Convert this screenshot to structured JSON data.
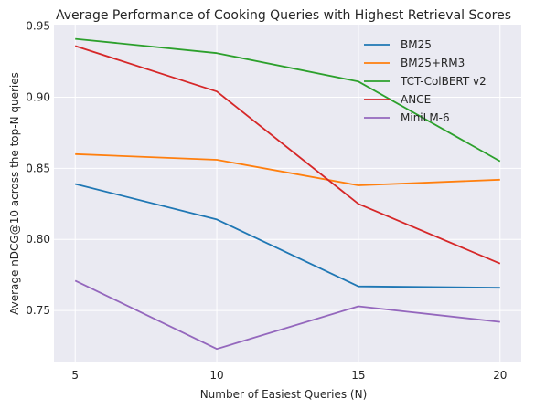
{
  "chart_data": {
    "type": "line",
    "title": "Average Performance of Cooking Queries with Highest Retrieval Scores",
    "xlabel": "Number of Easiest Queries (N)",
    "ylabel": "Average nDCG@10 across the top-N queries",
    "x": [
      5,
      10,
      15,
      20
    ],
    "xticks": [
      "5",
      "10",
      "15",
      "20"
    ],
    "yticks": [
      "0.75",
      "0.80",
      "0.85",
      "0.90",
      "0.95"
    ],
    "yticks_values": [
      0.75,
      0.8,
      0.85,
      0.9,
      0.95
    ],
    "xlim": [
      4.25,
      20.75
    ],
    "ylim": [
      0.7135,
      0.951
    ],
    "grid": true,
    "legend_position": "top-right",
    "series": [
      {
        "name": "BM25",
        "color": "#1f77b4",
        "values": [
          0.839,
          0.814,
          0.767,
          0.766
        ]
      },
      {
        "name": "BM25+RM3",
        "color": "#ff7f0e",
        "values": [
          0.86,
          0.856,
          0.838,
          0.842
        ]
      },
      {
        "name": "TCT-ColBERT v2",
        "color": "#2ca02c",
        "values": [
          0.941,
          0.931,
          0.911,
          0.855
        ]
      },
      {
        "name": "ANCE",
        "color": "#d62728",
        "values": [
          0.936,
          0.904,
          0.825,
          0.783
        ]
      },
      {
        "name": "MiniLM-6",
        "color": "#9467bd",
        "values": [
          0.771,
          0.723,
          0.753,
          0.742
        ]
      }
    ]
  }
}
